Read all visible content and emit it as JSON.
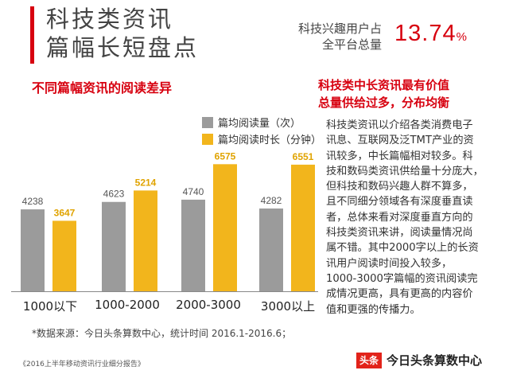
{
  "header": {
    "title_line1": "科技类资讯",
    "title_line2": "篇幅长短盘点",
    "stat_label_line1": "科技兴趣用户占",
    "stat_label_line2": "全平台总量",
    "stat_value": "13.74",
    "stat_unit": "%"
  },
  "chart_data": {
    "type": "bar",
    "title": "不同篇幅资讯的阅读差异",
    "categories": [
      "1000以下",
      "1000-2000",
      "2000-3000",
      "3000以上"
    ],
    "series": [
      {
        "name": "篇均阅读量（次）",
        "color": "#9b9b9b",
        "values": [
          4238,
          4623,
          4740,
          4282
        ]
      },
      {
        "name": "篇均阅读时长（分钟）",
        "color": "#f2b51c",
        "values": [
          3647,
          5214,
          6575,
          6551
        ]
      }
    ],
    "ylim": [
      0,
      7000
    ],
    "data_labels": true,
    "grid": false,
    "legend_position": "top-right"
  },
  "footnote": "*数据来源：今日头条算数中心，统计时间 2016.1-2016.6；",
  "source": "《2016上半年移动资讯行业细分报告》",
  "right_panel": {
    "title_line1": "科技类中长资讯最有价值",
    "title_line2": "总量供给过多，分布均衡",
    "body_lines": [
      "科技类资讯以介绍各类消费电子",
      "讯息、互联网及泛TMT产业的资",
      "讯较多，中长篇幅相对较多。科",
      "技和数码类资讯供给量十分庞大，",
      "但科技和数码兴趣人群不算多，",
      "且不同细分领域各有深度垂直读",
      "者，总体来看对深度垂直方向的",
      "科技类资讯来讲，阅读量情况尚",
      "属不错。其中2000字以上的长资",
      "讯用户阅读时间投入较多，",
      "1000-3000字篇幅的资讯阅读完",
      "成情况更高，具有更高的内容价",
      "值和更强的传播力。"
    ]
  },
  "brand": {
    "logo_text": "头条",
    "name": "今日头条算数中心"
  }
}
